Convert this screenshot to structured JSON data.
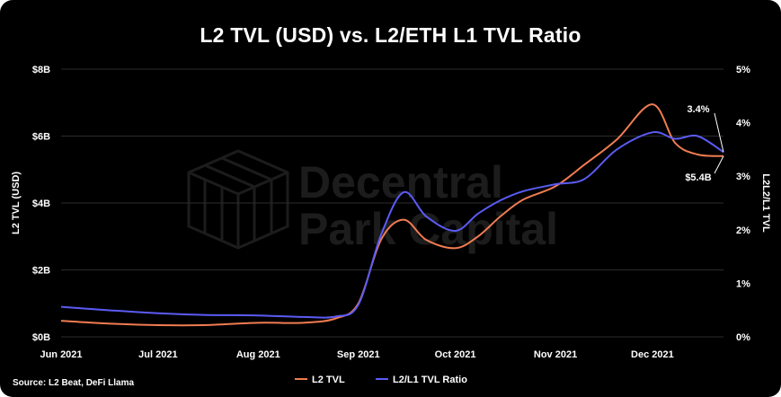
{
  "chart_data": {
    "type": "line",
    "title": "L2 TVL (USD) vs. L2/ETH L1 TVL Ratio",
    "source": "Source: L2 Beat, DeFi Llama",
    "watermark": [
      "Decentral",
      "Park Capital"
    ],
    "x_ticks": [
      "Jun 2021",
      "Jul 2021",
      "Aug 2021",
      "Sep 2021",
      "Oct 2021",
      "Nov 2021",
      "Dec 2021"
    ],
    "x_tick_dates": [
      "2021-06-01",
      "2021-07-01",
      "2021-08-01",
      "2021-09-01",
      "2021-10-01",
      "2021-11-01",
      "2021-12-01"
    ],
    "xlim": [
      "2021-06-01",
      "2021-12-23"
    ],
    "y_left": {
      "label": "L2 TVL (USD)",
      "ticks": [
        "$0B",
        "$2B",
        "$4B",
        "$6B",
        "$8B"
      ],
      "tick_values": [
        0,
        2,
        4,
        6,
        8
      ],
      "ylim": [
        0,
        8
      ]
    },
    "y_right": {
      "label": "L2L2/L1 TVL",
      "ticks": [
        "0%",
        "1%",
        "2%",
        "3%",
        "4%",
        "5%"
      ],
      "tick_values": [
        0,
        1,
        2,
        3,
        4,
        5
      ],
      "ylim": [
        0,
        5
      ]
    },
    "grid": true,
    "legend_position": "bottom-center",
    "annotations": [
      {
        "text": "3.4%",
        "x": "2021-12-23",
        "y": 3.45,
        "axis": "right"
      },
      {
        "text": "$5.4B",
        "x": "2021-12-23",
        "y": 5.4,
        "axis": "left"
      }
    ],
    "series": [
      {
        "name": "L2 TVL",
        "axis": "left",
        "color": "#f07c52",
        "x": [
          "2021-06-01",
          "2021-06-15",
          "2021-07-01",
          "2021-07-15",
          "2021-08-01",
          "2021-08-15",
          "2021-08-25",
          "2021-09-01",
          "2021-09-08",
          "2021-09-15",
          "2021-09-22",
          "2021-10-01",
          "2021-10-08",
          "2021-10-15",
          "2021-10-22",
          "2021-11-01",
          "2021-11-10",
          "2021-11-20",
          "2021-12-01",
          "2021-12-08",
          "2021-12-15",
          "2021-12-23"
        ],
        "values": [
          0.48,
          0.4,
          0.35,
          0.35,
          0.42,
          0.42,
          0.55,
          1.0,
          2.9,
          3.5,
          2.9,
          2.65,
          3.0,
          3.6,
          4.1,
          4.5,
          5.15,
          5.9,
          6.95,
          5.8,
          5.45,
          5.4
        ]
      },
      {
        "name": "L2/L1 TVL Ratio",
        "axis": "right",
        "color": "#5b5bf5",
        "x": [
          "2021-06-01",
          "2021-06-15",
          "2021-07-01",
          "2021-07-15",
          "2021-08-01",
          "2021-08-15",
          "2021-08-25",
          "2021-09-01",
          "2021-09-08",
          "2021-09-15",
          "2021-09-22",
          "2021-10-01",
          "2021-10-08",
          "2021-10-15",
          "2021-10-22",
          "2021-11-01",
          "2021-11-10",
          "2021-11-20",
          "2021-12-01",
          "2021-12-08",
          "2021-12-15",
          "2021-12-23"
        ],
        "values": [
          0.56,
          0.5,
          0.44,
          0.41,
          0.4,
          0.37,
          0.38,
          0.6,
          1.9,
          2.7,
          2.25,
          1.98,
          2.3,
          2.55,
          2.72,
          2.85,
          2.95,
          3.5,
          3.82,
          3.7,
          3.75,
          3.45
        ]
      }
    ]
  }
}
